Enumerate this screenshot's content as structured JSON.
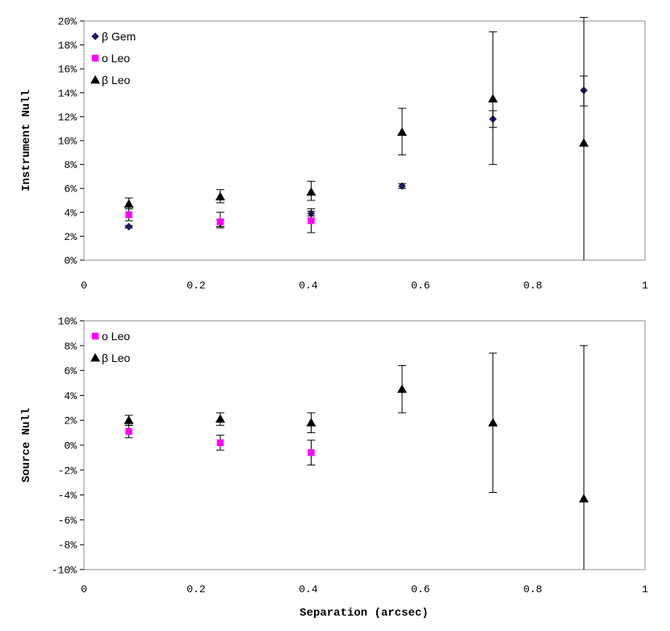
{
  "chart_data": [
    {
      "type": "scatter",
      "ylabel": "Instrument Null",
      "xlabel": "",
      "xlim": [
        0,
        1
      ],
      "ylim": [
        0,
        20
      ],
      "x_ticks": [
        "0",
        "0.2",
        "0.4",
        "0.6",
        "0.8",
        "1"
      ],
      "y_ticks": [
        "0%",
        "2%",
        "4%",
        "6%",
        "8%",
        "10%",
        "12%",
        "14%",
        "16%",
        "18%",
        "20%"
      ],
      "legend_position": "top-left",
      "series": [
        {
          "name": "β Gem",
          "marker": "diamond",
          "color": "#1a1a6e",
          "points": [
            {
              "x": 0.08,
              "y": 2.8,
              "err_low": 0.1,
              "err_high": 0.1
            },
            {
              "x": 0.243,
              "y": 3.1,
              "err_low": 0.3,
              "err_high": 0.3
            },
            {
              "x": 0.405,
              "y": 3.9,
              "err_low": 0.2,
              "err_high": 0.2
            },
            {
              "x": 0.567,
              "y": 6.2,
              "err_low": 0.2,
              "err_high": 0.2
            },
            {
              "x": 0.729,
              "y": 11.8,
              "err_low": 0.7,
              "err_high": 0.7
            },
            {
              "x": 0.891,
              "y": 14.2,
              "err_low": 1.3,
              "err_high": 1.2
            }
          ]
        },
        {
          "name": "o Leo",
          "marker": "square",
          "color": "#ff00ff",
          "points": [
            {
              "x": 0.08,
              "y": 3.8,
              "err_low": 0.5,
              "err_high": 0.5
            },
            {
              "x": 0.243,
              "y": 3.2,
              "err_low": 0.5,
              "err_high": 0.8
            },
            {
              "x": 0.405,
              "y": 3.3,
              "err_low": 1.0,
              "err_high": 1.0
            }
          ]
        },
        {
          "name": "β Leo",
          "marker": "triangle",
          "color": "#000000",
          "points": [
            {
              "x": 0.08,
              "y": 4.7,
              "err_low": 0.4,
              "err_high": 0.5
            },
            {
              "x": 0.243,
              "y": 5.3,
              "err_low": 0.5,
              "err_high": 0.6
            },
            {
              "x": 0.405,
              "y": 5.7,
              "err_low": 0.7,
              "err_high": 0.9
            },
            {
              "x": 0.567,
              "y": 10.7,
              "err_low": 1.9,
              "err_high": 2.0
            },
            {
              "x": 0.729,
              "y": 13.5,
              "err_low": 5.5,
              "err_high": 5.6
            },
            {
              "x": 0.891,
              "y": 9.8,
              "err_low": 10.5,
              "err_high": 10.5
            }
          ]
        }
      ]
    },
    {
      "type": "scatter",
      "ylabel": "Source Null",
      "xlabel": "Separation (arcsec)",
      "xlim": [
        0,
        1
      ],
      "ylim": [
        -10,
        10
      ],
      "x_ticks": [
        "0",
        "0.2",
        "0.4",
        "0.6",
        "0.8",
        "1"
      ],
      "y_ticks": [
        "-10%",
        "-8%",
        "-6%",
        "-4%",
        "-2%",
        "0%",
        "2%",
        "4%",
        "6%",
        "8%",
        "10%"
      ],
      "legend_position": "top-left",
      "series": [
        {
          "name": "o Leo",
          "marker": "square",
          "color": "#ff00ff",
          "points": [
            {
              "x": 0.08,
              "y": 1.1,
              "err_low": 0.5,
              "err_high": 0.5
            },
            {
              "x": 0.243,
              "y": 0.2,
              "err_low": 0.6,
              "err_high": 0.6
            },
            {
              "x": 0.405,
              "y": -0.6,
              "err_low": 1.0,
              "err_high": 1.0
            }
          ]
        },
        {
          "name": "β Leo",
          "marker": "triangle",
          "color": "#000000",
          "points": [
            {
              "x": 0.08,
              "y": 2.0,
              "err_low": 0.4,
              "err_high": 0.4
            },
            {
              "x": 0.243,
              "y": 2.1,
              "err_low": 0.5,
              "err_high": 0.5
            },
            {
              "x": 0.405,
              "y": 1.8,
              "err_low": 0.8,
              "err_high": 0.8
            },
            {
              "x": 0.567,
              "y": 4.5,
              "err_low": 1.9,
              "err_high": 1.9
            },
            {
              "x": 0.729,
              "y": 1.8,
              "err_low": 5.6,
              "err_high": 5.6
            },
            {
              "x": 0.891,
              "y": -4.3,
              "err_low": 6.0,
              "err_high": 12.3
            }
          ]
        }
      ]
    }
  ]
}
